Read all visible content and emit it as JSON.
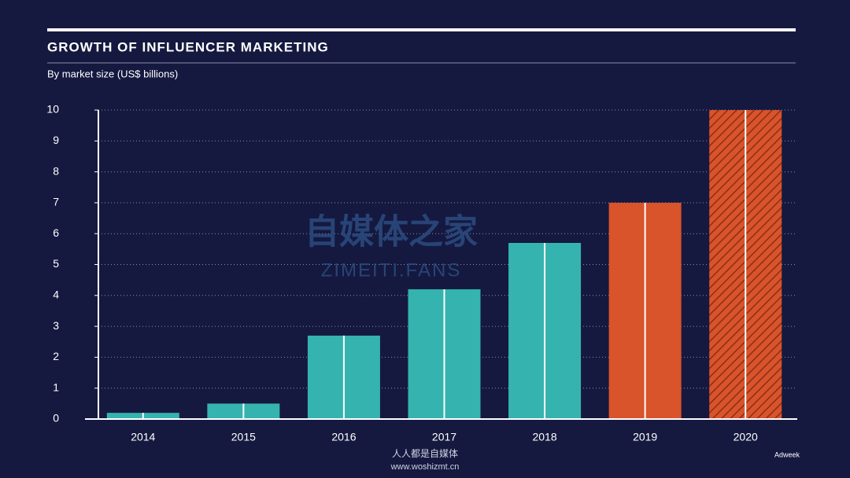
{
  "chart_data": {
    "type": "bar",
    "title": "GROWTH OF INFLUENCER MARKETING",
    "subtitle": "By market size (US$ billions)",
    "categories": [
      "2014",
      "2015",
      "2016",
      "2017",
      "2018",
      "2019",
      "2020"
    ],
    "values": [
      0.2,
      0.5,
      2.7,
      4.2,
      5.7,
      7.0,
      10
    ],
    "colors": [
      "#35b3ae",
      "#35b3ae",
      "#35b3ae",
      "#35b3ae",
      "#35b3ae",
      "#d9532b",
      "#d9532b"
    ],
    "hatched": [
      false,
      false,
      false,
      false,
      false,
      false,
      true
    ],
    "ylim": [
      0,
      10
    ],
    "yticks": [
      0,
      1,
      2,
      3,
      4,
      5,
      6,
      7,
      8,
      9,
      10
    ],
    "grid": true,
    "source": "Adweek",
    "watermark": [
      "自媒体之家",
      "ZIMEITI.FANS",
      "人人都是自媒体",
      "www.woshizmt.cn"
    ]
  }
}
